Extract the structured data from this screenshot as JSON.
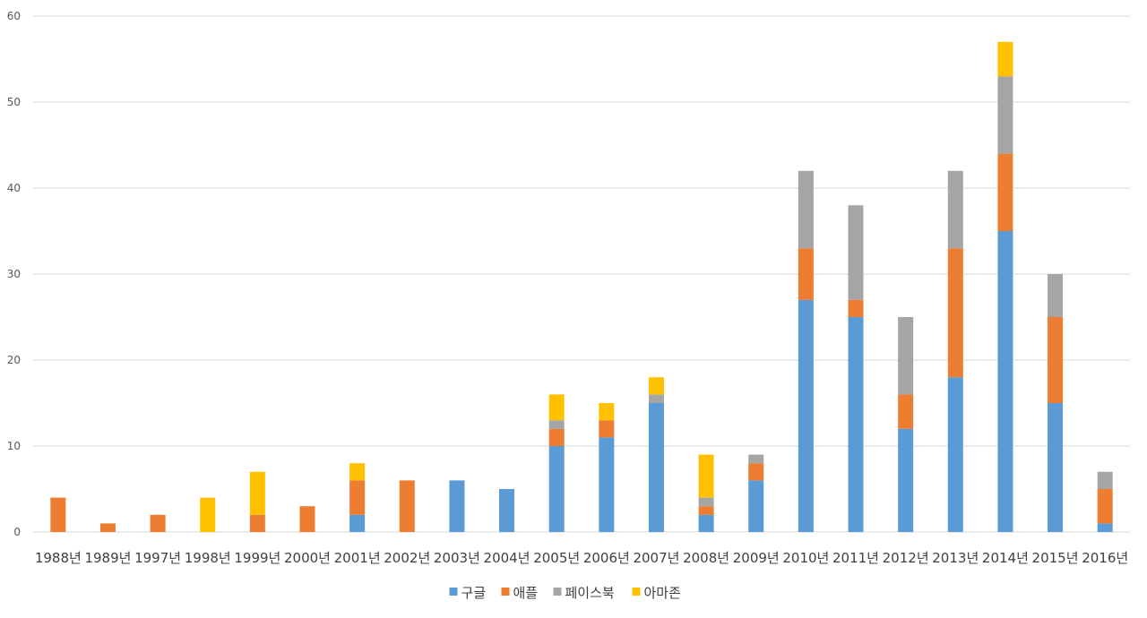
{
  "chart_data": {
    "type": "bar",
    "stacked": true,
    "title": "",
    "xlabel": "",
    "ylabel": "",
    "ylim": [
      0,
      60
    ],
    "yticks": [
      0,
      10,
      20,
      30,
      40,
      50,
      60
    ],
    "grid": true,
    "legend_position": "bottom",
    "categories": [
      "1988년",
      "1989년",
      "1997년",
      "1998년",
      "1999년",
      "2000년",
      "2001년",
      "2002년",
      "2003년",
      "2004년",
      "2005년",
      "2006년",
      "2007년",
      "2008년",
      "2009년",
      "2010년",
      "2011년",
      "2012년",
      "2013년",
      "2014년",
      "2015년",
      "2016년"
    ],
    "series": [
      {
        "name": "구글",
        "color": "#5b9bd5",
        "values": [
          0,
          0,
          0,
          0,
          0,
          0,
          2,
          0,
          6,
          5,
          10,
          11,
          15,
          2,
          6,
          27,
          25,
          12,
          18,
          35,
          15,
          1
        ]
      },
      {
        "name": "애플",
        "color": "#ed7d31",
        "values": [
          4,
          1,
          2,
          0,
          2,
          3,
          4,
          6,
          0,
          0,
          2,
          2,
          0,
          1,
          2,
          6,
          2,
          4,
          15,
          9,
          10,
          4
        ]
      },
      {
        "name": "페이스북",
        "color": "#a5a5a5",
        "values": [
          0,
          0,
          0,
          0,
          0,
          0,
          0,
          0,
          0,
          0,
          1,
          0,
          1,
          1,
          1,
          9,
          11,
          9,
          9,
          9,
          5,
          2
        ]
      },
      {
        "name": "아마존",
        "color": "#ffc000",
        "values": [
          0,
          0,
          0,
          4,
          5,
          0,
          2,
          0,
          0,
          0,
          3,
          2,
          2,
          5,
          0,
          0,
          0,
          0,
          0,
          4,
          0,
          0
        ]
      }
    ]
  }
}
